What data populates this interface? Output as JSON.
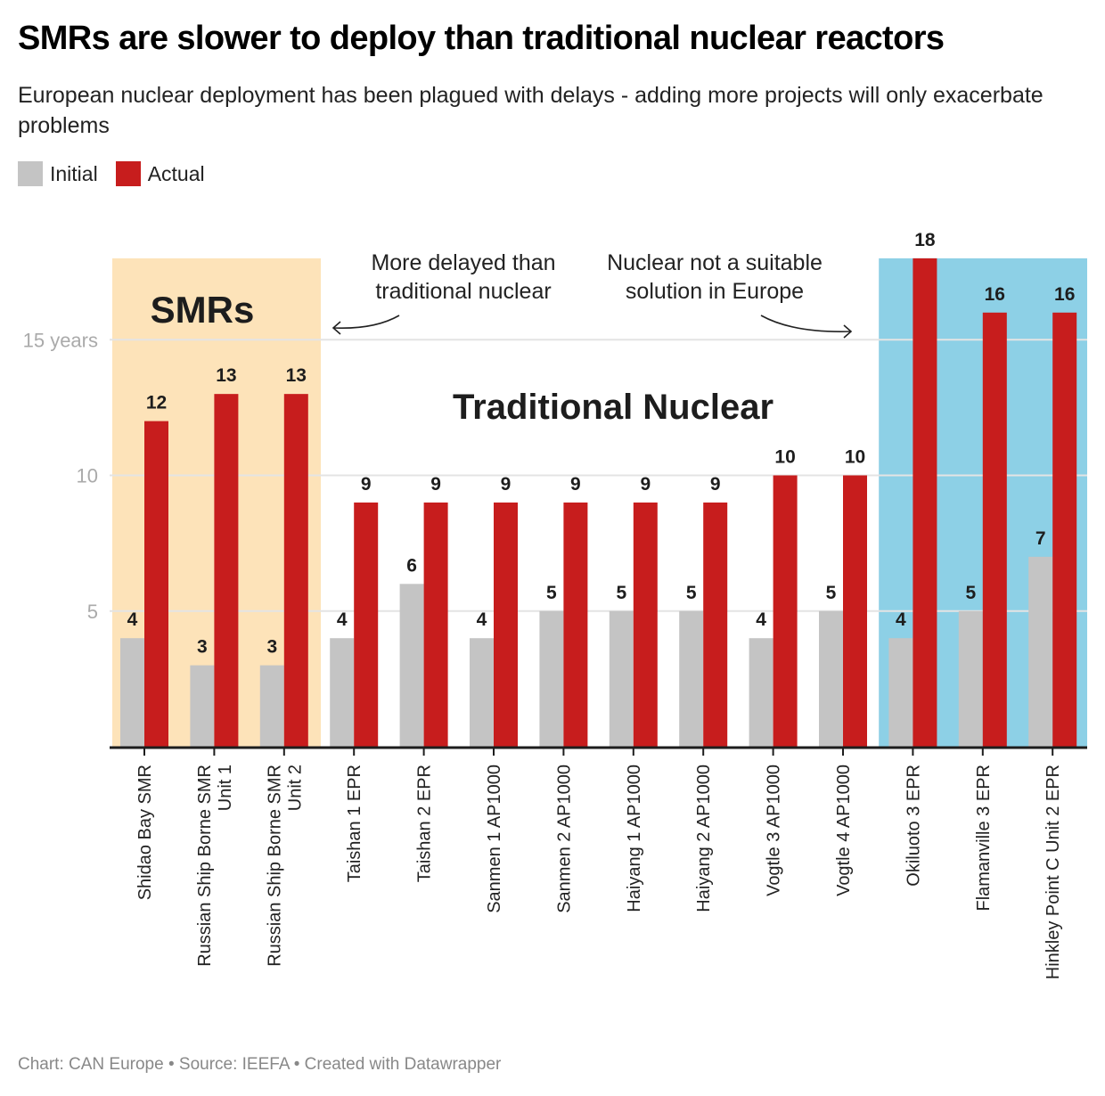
{
  "header": {
    "title": "SMRs are slower to deploy than traditional nuclear reactors",
    "subtitle": "European nuclear deployment has been plagued with delays - adding more projects will only exacerbate problems"
  },
  "legend": [
    {
      "label": "Initial",
      "color": "#c4c4c4"
    },
    {
      "label": "Actual",
      "color": "#c71d1d"
    }
  ],
  "footer": "Chart: CAN Europe • Source: IEEFA • Created with Datawrapper",
  "colors": {
    "initial": "#c4c4c4",
    "actual": "#c71d1d",
    "smr_band": "#fde3b9",
    "europe_band": "#8dd0e6",
    "grid": "#e4e4e4",
    "axis": "#1d1d1d"
  },
  "chart_data": {
    "type": "bar",
    "title": "SMRs are slower to deploy than traditional nuclear reactors",
    "xlabel": "",
    "ylabel": "years",
    "ylim": [
      0,
      18
    ],
    "yticks": [
      {
        "value": 5,
        "label": "5"
      },
      {
        "value": 10,
        "label": "10"
      },
      {
        "value": 15,
        "label": "15 years"
      }
    ],
    "grid": true,
    "legend_position": "top-left",
    "categories": [
      [
        "Shidao Bay SMR"
      ],
      [
        "Russian Ship Borne SMR",
        "Unit 1"
      ],
      [
        "Russian Ship Borne SMR",
        "Unit 2"
      ],
      [
        "Taishan 1 EPR"
      ],
      [
        "Taishan 2 EPR"
      ],
      [
        "Sanmen 1 AP1000"
      ],
      [
        "Sanmen 2 AP1000"
      ],
      [
        "Haiyang 1 AP1000"
      ],
      [
        "Haiyang 2 AP1000"
      ],
      [
        "Vogtle 3 AP1000"
      ],
      [
        "Vogtle 4 AP1000"
      ],
      [
        "Okiluoto 3 EPR"
      ],
      [
        "Flamanville 3 EPR"
      ],
      [
        "Hinkley Point C Unit 2 EPR"
      ]
    ],
    "series": [
      {
        "name": "Initial",
        "values": [
          4,
          3,
          3,
          4,
          6,
          4,
          5,
          5,
          5,
          4,
          5,
          4,
          5,
          7
        ]
      },
      {
        "name": "Actual",
        "values": [
          12,
          13,
          13,
          9,
          9,
          9,
          9,
          9,
          9,
          10,
          10,
          18,
          16,
          16
        ]
      }
    ],
    "regions": [
      {
        "label": "SMRs",
        "from_index": 0,
        "to_index": 2,
        "top_value": 18
      },
      {
        "label": "Traditional Nuclear",
        "from_index": 3,
        "to_index": 10
      },
      {
        "label": "",
        "from_index": 11,
        "to_index": 13,
        "top_value": 18
      }
    ],
    "annotations": [
      {
        "lines": [
          "More delayed than",
          "traditional nuclear"
        ],
        "arrow": "left"
      },
      {
        "lines": [
          "Nuclear not a suitable",
          "solution in Europe"
        ],
        "arrow": "right"
      }
    ]
  }
}
